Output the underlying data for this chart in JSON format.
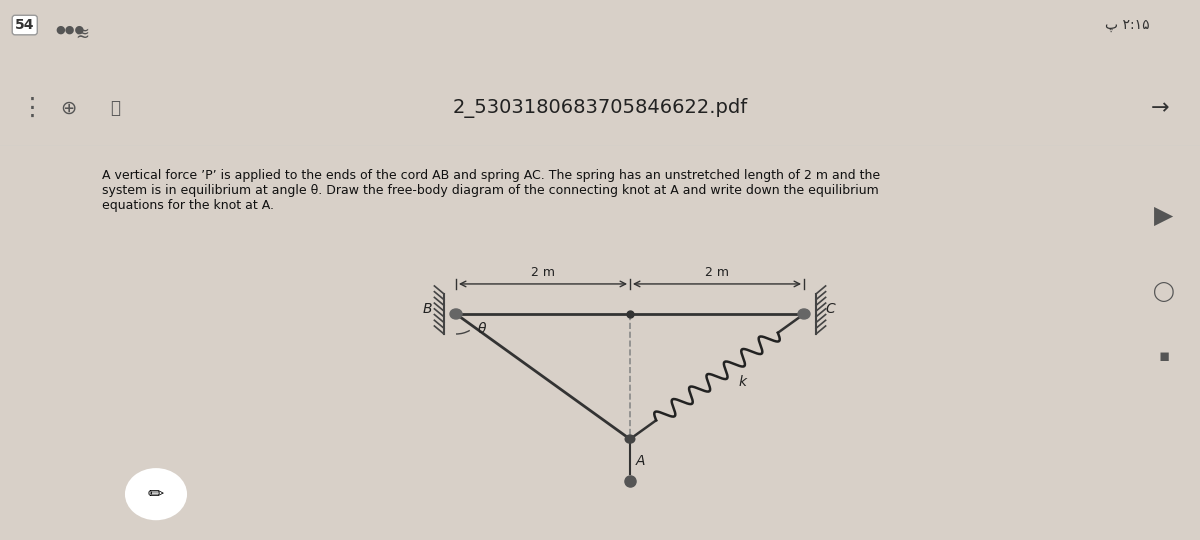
{
  "bg_color": "#d8d0c8",
  "paper_color": "#f0ece4",
  "top_bar_color": "#ffffff",
  "title_text": "2_5303180683705846622.pdf",
  "status_left": "54",
  "status_right": "پ ۲:۱۵",
  "problem_text": "A vertical force ’P’ is applied to the ends of the cord AB and spring AC. The spring has an unstretched length of 2 m and the\nsystem is in equilibrium at angle θ. Draw the free-body diagram of the connecting knot at A and write down the equilibrium\nequations for the knot at A.",
  "dim_label_left": "2 m",
  "dim_label_right": "2 m",
  "label_B": "B",
  "label_C": "C",
  "label_A": "A",
  "label_theta": "θ",
  "label_k": "k",
  "line_color": "#333333",
  "spring_color": "#222222",
  "wall_color": "#555555"
}
